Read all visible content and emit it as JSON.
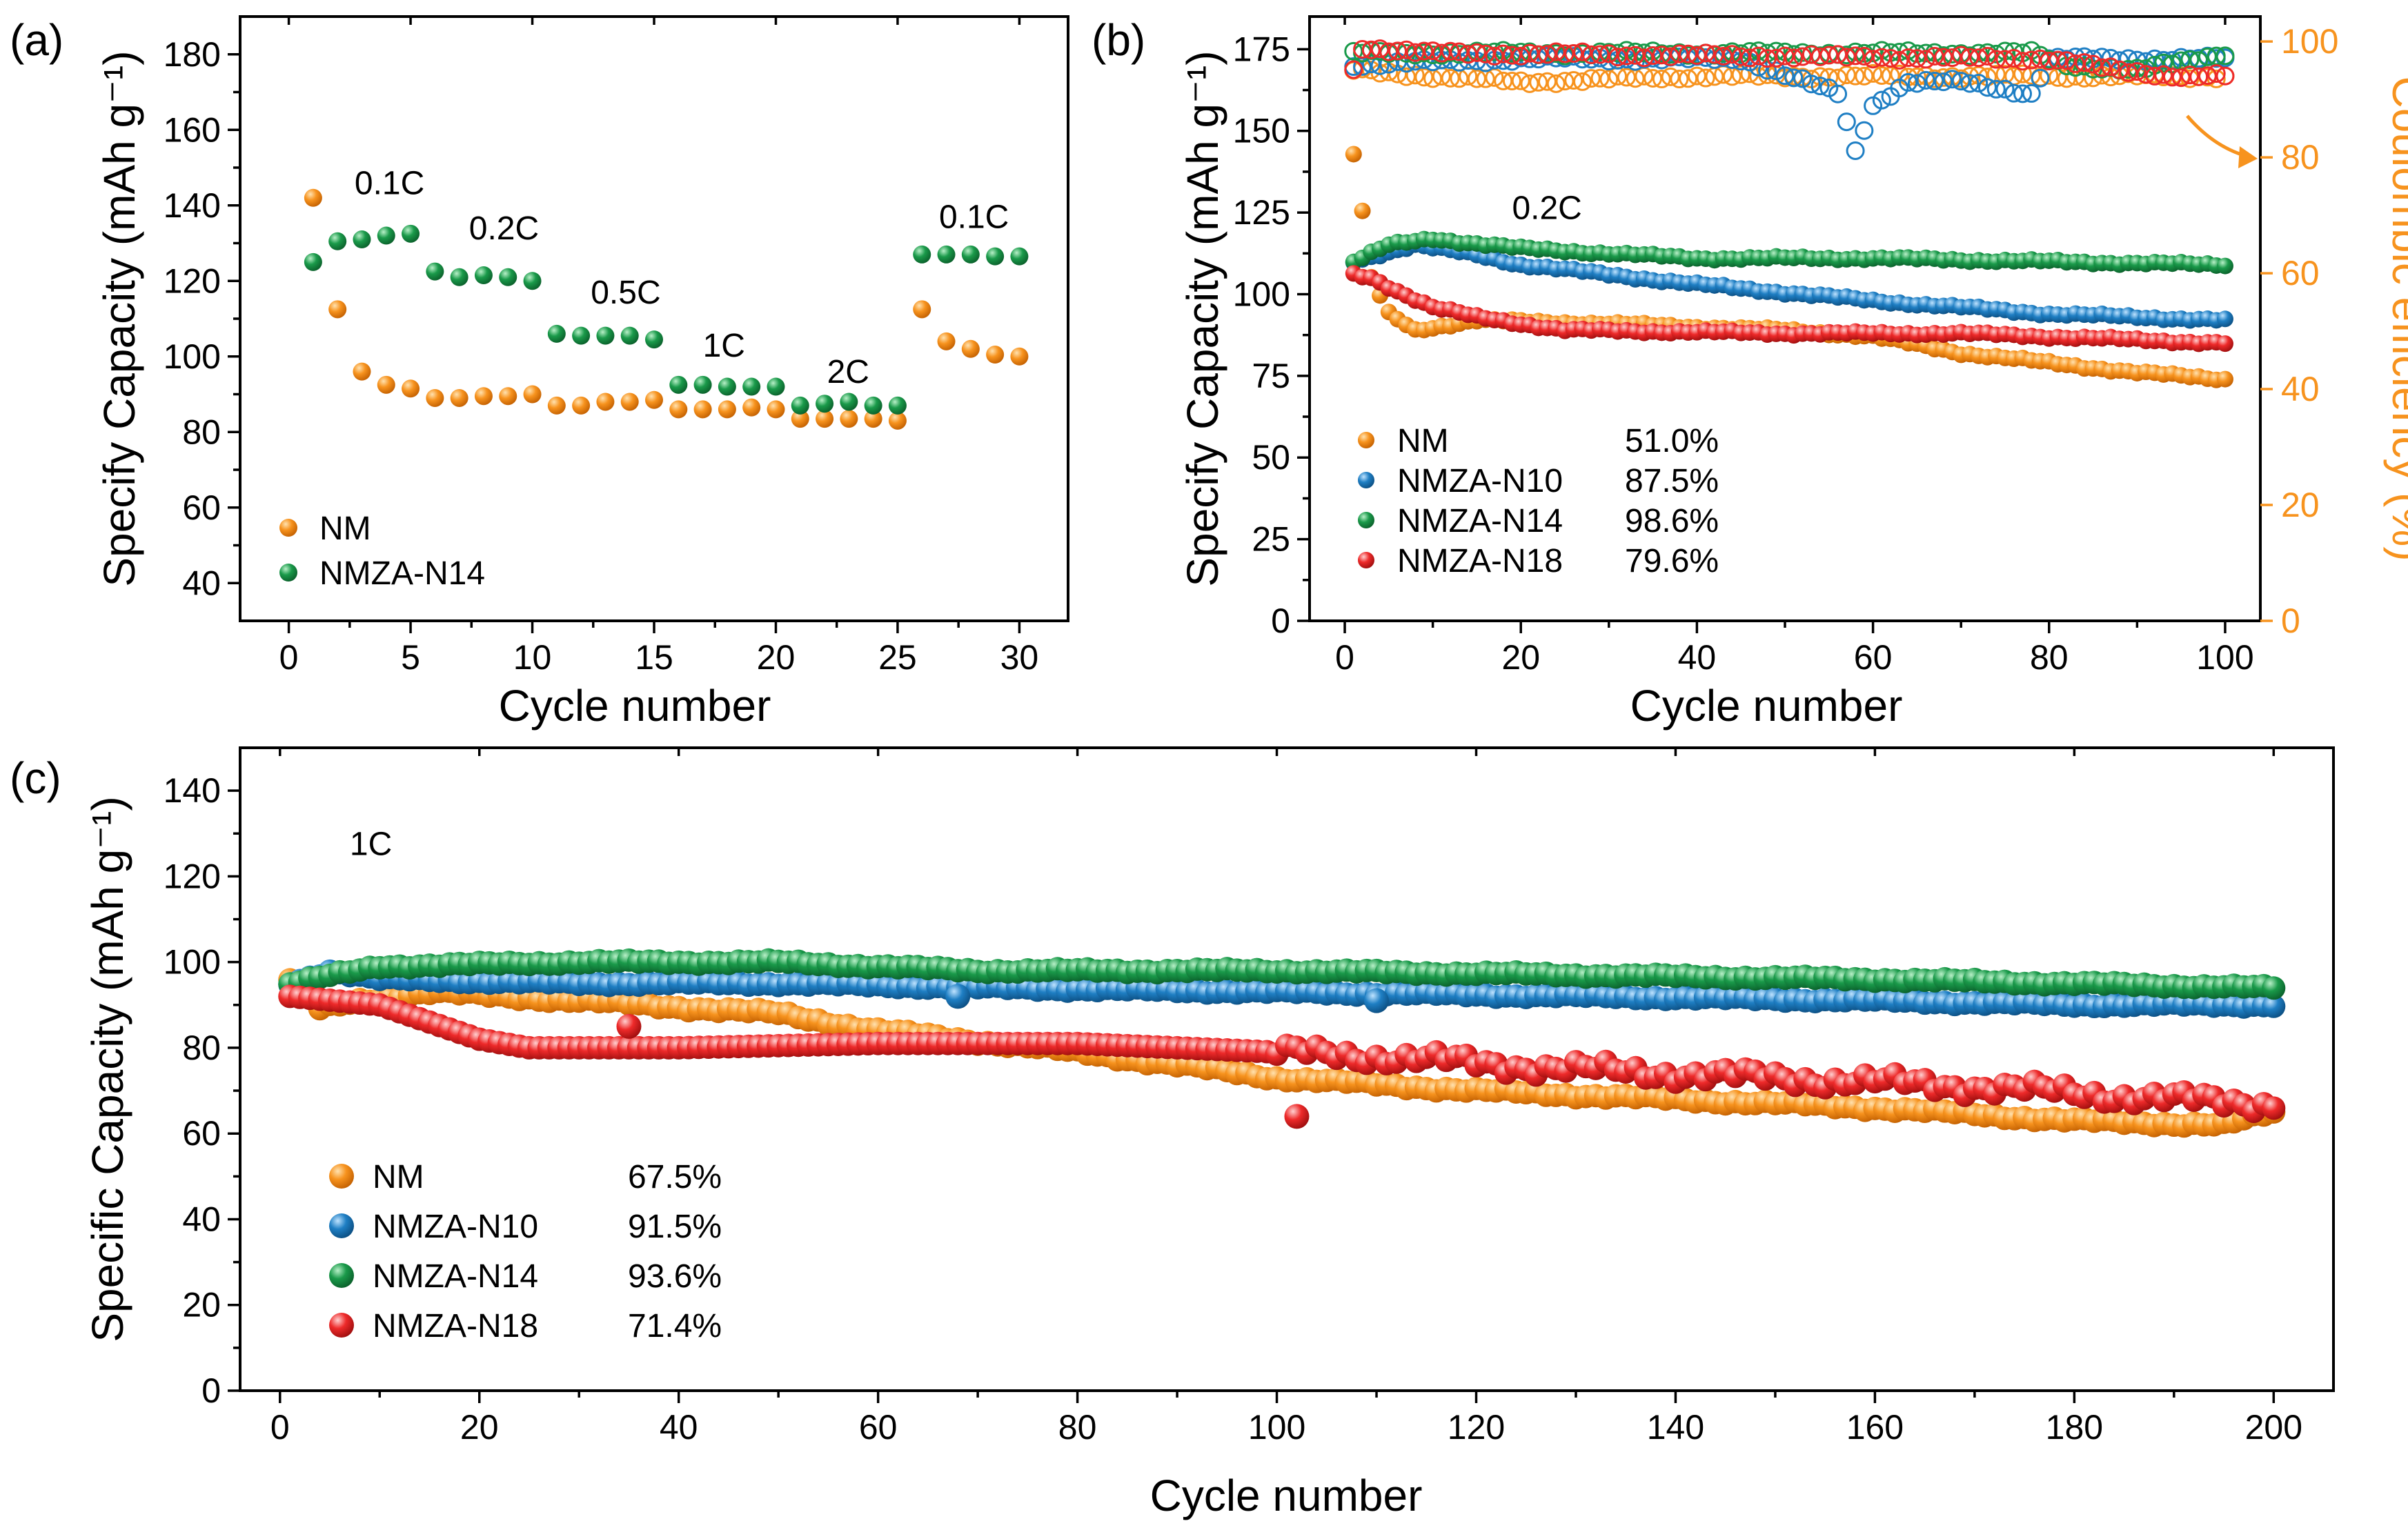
{
  "colors": {
    "NM": "#f7931e",
    "NMZA-N10": "#1f7fc4",
    "NMZA-N14": "#1a9a4a",
    "NMZA-N18": "#ee2a2a",
    "ce_axis": "#f7931e"
  },
  "chart_data": [
    {
      "panel": "(a)",
      "type": "scatter",
      "xlabel": "Cycle number",
      "ylabel": "Specify Capacity (mAh g⁻¹)",
      "xlim": [
        -2,
        32
      ],
      "ylim": [
        30,
        190
      ],
      "xticks": [
        0,
        5,
        10,
        15,
        20,
        25,
        30
      ],
      "yticks": [
        40,
        60,
        80,
        100,
        120,
        140,
        160,
        180
      ],
      "annotations": [
        {
          "text": "0.1C",
          "x": 2.7,
          "y": 143
        },
        {
          "text": "0.2C",
          "x": 7.4,
          "y": 131
        },
        {
          "text": "0.5C",
          "x": 12.4,
          "y": 114
        },
        {
          "text": "1C",
          "x": 17.0,
          "y": 100
        },
        {
          "text": "2C",
          "x": 22.1,
          "y": 93
        },
        {
          "text": "0.1C",
          "x": 26.7,
          "y": 134
        }
      ],
      "series": [
        {
          "name": "NM",
          "x": [
            1,
            2,
            3,
            4,
            5,
            6,
            7,
            8,
            9,
            10,
            11,
            12,
            13,
            14,
            15,
            16,
            17,
            18,
            19,
            20,
            21,
            22,
            23,
            24,
            25,
            26,
            27,
            28,
            29,
            30
          ],
          "values": [
            142,
            112.5,
            96,
            92.5,
            91.5,
            89,
            89,
            89.5,
            89.5,
            90,
            87,
            87,
            88,
            88,
            88.5,
            86,
            86,
            86,
            86.5,
            86,
            83.5,
            83.5,
            83.5,
            83.5,
            83,
            112.5,
            104,
            102,
            100.5,
            100
          ]
        },
        {
          "name": "NMZA-N14",
          "x": [
            1,
            2,
            3,
            4,
            5,
            6,
            7,
            8,
            9,
            10,
            11,
            12,
            13,
            14,
            15,
            16,
            17,
            18,
            19,
            20,
            21,
            22,
            23,
            24,
            25,
            26,
            27,
            28,
            29,
            30
          ],
          "values": [
            125,
            130.5,
            131,
            132,
            132.5,
            122.5,
            121,
            121.5,
            121,
            120,
            106,
            105.5,
            105.5,
            105.5,
            104.5,
            92.5,
            92.5,
            92,
            92,
            92,
            87,
            87.5,
            88,
            87,
            87,
            127,
            127,
            127,
            126.5,
            126.5
          ]
        }
      ],
      "legend": [
        {
          "name": "NM"
        },
        {
          "name": "NMZA-N14"
        }
      ]
    },
    {
      "panel": "(b)",
      "type": "scatter",
      "xlabel": "Cycle number",
      "ylabel": "Specify Capacity (mAh g⁻¹)",
      "y2label": "Coulombic efficiency (%)",
      "xlim": [
        -4,
        104
      ],
      "ylim": [
        0,
        185
      ],
      "y2lim": [
        0,
        104.3
      ],
      "xticks": [
        0,
        20,
        40,
        60,
        80,
        100
      ],
      "yticks": [
        0,
        25,
        50,
        75,
        100,
        125,
        150,
        175
      ],
      "y2ticks": [
        0,
        20,
        40,
        60,
        80,
        100
      ],
      "annotations": [
        {
          "text": "0.2C",
          "x": 19,
          "y": 123
        }
      ],
      "series": [
        {
          "name": "NM",
          "retention": "51.0%",
          "capacity_anchors": [
            [
              1,
              143
            ],
            [
              2,
              125
            ],
            [
              3,
              105
            ],
            [
              5,
              94
            ],
            [
              8,
              89
            ],
            [
              15,
              92
            ],
            [
              30,
              91
            ],
            [
              50,
              89
            ],
            [
              60,
              87
            ],
            [
              70,
              82
            ],
            [
              80,
              79
            ],
            [
              90,
              76
            ],
            [
              100,
              74
            ]
          ],
          "ce_anchors": [
            [
              1,
              95
            ],
            [
              10,
              94
            ],
            [
              20,
              93
            ],
            [
              40,
              94
            ],
            [
              60,
              94
            ],
            [
              80,
              94
            ],
            [
              100,
              94
            ]
          ]
        },
        {
          "name": "NMZA-N10",
          "retention": "87.5%",
          "capacity_anchors": [
            [
              1,
              110
            ],
            [
              5,
              113
            ],
            [
              8,
              115
            ],
            [
              15,
              112
            ],
            [
              20,
              109
            ],
            [
              40,
              103
            ],
            [
              60,
              98
            ],
            [
              80,
              94
            ],
            [
              100,
              92
            ]
          ],
          "ce_anchors": [
            [
              1,
              96
            ],
            [
              20,
              97
            ],
            [
              45,
              97
            ],
            [
              56,
              91
            ],
            [
              58,
              81
            ],
            [
              60,
              89
            ],
            [
              64,
              93
            ],
            [
              70,
              93
            ],
            [
              78,
              91
            ],
            [
              80,
              97
            ],
            [
              100,
              97
            ]
          ]
        },
        {
          "name": "NMZA-N14",
          "retention": "98.6%",
          "capacity_anchors": [
            [
              1,
              110
            ],
            [
              5,
              115
            ],
            [
              10,
              117
            ],
            [
              20,
              114
            ],
            [
              40,
              111
            ],
            [
              60,
              111
            ],
            [
              80,
              110
            ],
            [
              100,
              109
            ]
          ],
          "ce_anchors": [
            [
              1,
              98
            ],
            [
              20,
              98
            ],
            [
              50,
              98
            ],
            [
              78,
              98
            ],
            [
              82,
              96
            ],
            [
              90,
              95
            ],
            [
              100,
              98
            ]
          ]
        },
        {
          "name": "NMZA-N18",
          "retention": "79.6%",
          "capacity_anchors": [
            [
              1,
              106
            ],
            [
              3,
              105
            ],
            [
              6,
              101
            ],
            [
              10,
              96
            ],
            [
              15,
              93
            ],
            [
              25,
              89
            ],
            [
              50,
              88
            ],
            [
              70,
              88
            ],
            [
              90,
              86
            ],
            [
              100,
              85
            ]
          ],
          "ce_anchors": [
            [
              1,
              95
            ],
            [
              2,
              99
            ],
            [
              10,
              98
            ],
            [
              80,
              97
            ],
            [
              88,
              95
            ],
            [
              95,
              94
            ],
            [
              100,
              94
            ]
          ]
        }
      ],
      "legend": [
        {
          "name": "NM",
          "value": "51.0%"
        },
        {
          "name": "NMZA-N10",
          "value": "87.5%"
        },
        {
          "name": "NMZA-N14",
          "value": "98.6%"
        },
        {
          "name": "NMZA-N18",
          "value": "79.6%"
        }
      ]
    },
    {
      "panel": "(c)",
      "type": "scatter",
      "xlabel": "Cycle number",
      "ylabel": "Specific Capacity (mAh g⁻¹)",
      "xlim": [
        -4,
        206
      ],
      "ylim": [
        0,
        150
      ],
      "xticks": [
        0,
        20,
        40,
        60,
        80,
        100,
        120,
        140,
        160,
        180,
        200
      ],
      "yticks": [
        0,
        20,
        40,
        60,
        80,
        100,
        120,
        140
      ],
      "annotations": [
        {
          "text": "1C",
          "x": 7,
          "y": 125
        }
      ],
      "series": [
        {
          "name": "NM",
          "retention": "67.5%",
          "capacity_anchors": [
            [
              1,
              96
            ],
            [
              4,
              89
            ],
            [
              8,
              91
            ],
            [
              15,
              93
            ],
            [
              30,
              91
            ],
            [
              50,
              88
            ],
            [
              60,
              84
            ],
            [
              80,
              79
            ],
            [
              100,
              73
            ],
            [
              120,
              70
            ],
            [
              140,
              68
            ],
            [
              160,
              66
            ],
            [
              180,
              63
            ],
            [
              195,
              62
            ],
            [
              200,
              65
            ]
          ]
        },
        {
          "name": "NMZA-N10",
          "retention": "91.5%",
          "capacity_anchors": [
            [
              1,
              95
            ],
            [
              5,
              98
            ],
            [
              10,
              96
            ],
            [
              30,
              95
            ],
            [
              50,
              95
            ],
            [
              70,
              94
            ],
            [
              100,
              93
            ],
            [
              130,
              92
            ],
            [
              160,
              91
            ],
            [
              180,
              90
            ],
            [
              200,
              90
            ]
          ]
        },
        {
          "name": "NMZA-N14",
          "retention": "93.6%",
          "capacity_anchors": [
            [
              1,
              95
            ],
            [
              10,
              99
            ],
            [
              30,
              100
            ],
            [
              50,
              100
            ],
            [
              70,
              98
            ],
            [
              100,
              98
            ],
            [
              130,
              97
            ],
            [
              160,
              96
            ],
            [
              180,
              95
            ],
            [
              200,
              94
            ]
          ]
        },
        {
          "name": "NMZA-N18",
          "retention": "71.4%",
          "capacity_anchors": [
            [
              1,
              92
            ],
            [
              10,
              90
            ],
            [
              15,
              86
            ],
            [
              20,
              82
            ],
            [
              25,
              80
            ],
            [
              40,
              80
            ],
            [
              60,
              81
            ],
            [
              80,
              81
            ],
            [
              100,
              79
            ],
            [
              110,
              78
            ],
            [
              130,
              75
            ],
            [
              150,
              73
            ],
            [
              170,
              71
            ],
            [
              190,
              68
            ],
            [
              200,
              67
            ]
          ]
        }
      ],
      "outliers": [
        {
          "series": "NMZA-N18",
          "x": 35,
          "y": 85
        },
        {
          "series": "NMZA-N18",
          "x": 102,
          "y": 64
        },
        {
          "series": "NMZA-N10",
          "x": 68,
          "y": 92
        },
        {
          "series": "NMZA-N10",
          "x": 110,
          "y": 91
        }
      ],
      "legend": [
        {
          "name": "NM",
          "value": "67.5%"
        },
        {
          "name": "NMZA-N10",
          "value": "91.5%"
        },
        {
          "name": "NMZA-N14",
          "value": "93.6%"
        },
        {
          "name": "NMZA-N18",
          "value": "71.4%"
        }
      ]
    }
  ]
}
